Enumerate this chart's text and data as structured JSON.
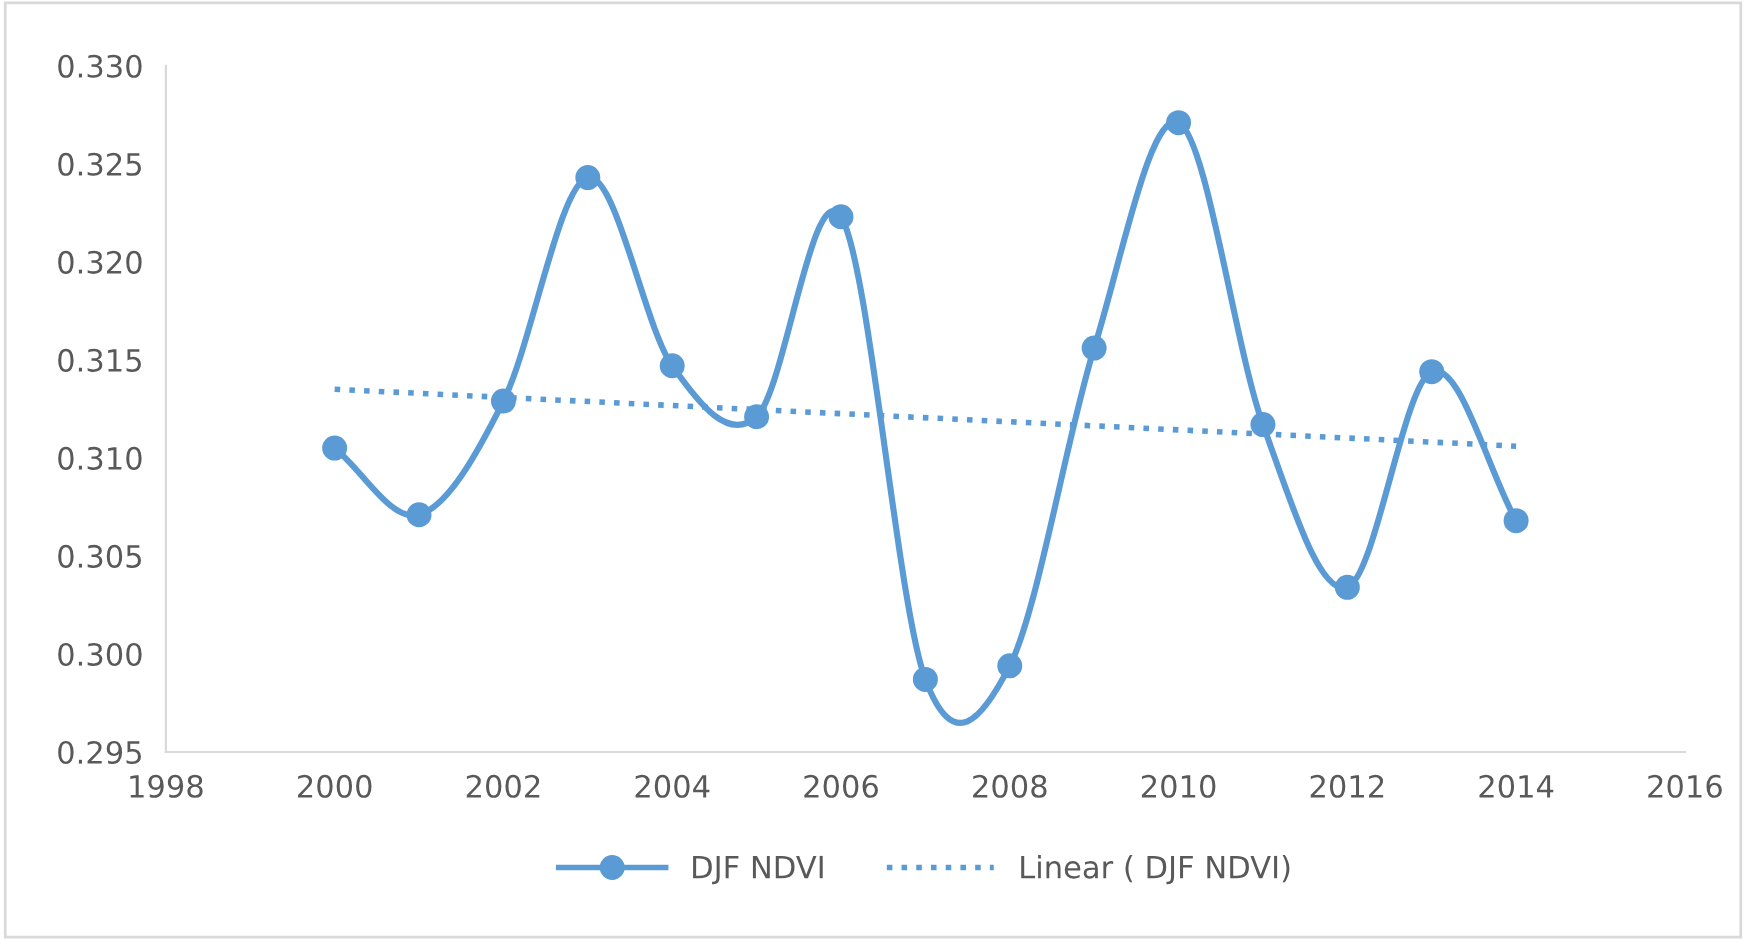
{
  "chart_data": {
    "type": "line",
    "x": [
      2000,
      2001,
      2002,
      2003,
      2004,
      2005,
      2006,
      2007,
      2008,
      2009,
      2010,
      2011,
      2012,
      2013,
      2014
    ],
    "series": [
      {
        "name": "DJF NDVI",
        "color": "#5b9bd5",
        "marker": "circle",
        "line_style": "solid",
        "values": [
          0.3105,
          0.3071,
          0.3129,
          0.3243,
          0.3147,
          0.3121,
          0.3223,
          0.2987,
          0.2994,
          0.3156,
          0.3271,
          0.3117,
          0.3034,
          0.3144,
          0.3068
        ]
      },
      {
        "name": "Linear ( DJF NDVI)",
        "color": "#5b9bd5",
        "marker": "none",
        "line_style": "dotted",
        "x": [
          2000,
          2014
        ],
        "values": [
          0.3135,
          0.3106
        ]
      }
    ],
    "xlim": [
      1998,
      2016
    ],
    "xticks": [
      1998,
      2000,
      2002,
      2004,
      2006,
      2008,
      2010,
      2012,
      2014,
      2016
    ],
    "ylim": [
      0.295,
      0.33
    ],
    "yticks": [
      {
        "value": 0.295,
        "label": "0.295"
      },
      {
        "value": 0.3,
        "label": "0.300"
      },
      {
        "value": 0.305,
        "label": "0.305"
      },
      {
        "value": 0.31,
        "label": "0.310"
      },
      {
        "value": 0.315,
        "label": "0.315"
      },
      {
        "value": 0.32,
        "label": "0.320"
      },
      {
        "value": 0.325,
        "label": "0.325"
      },
      {
        "value": 0.33,
        "label": "0.330"
      }
    ],
    "grid": false,
    "legend": "bottom"
  }
}
